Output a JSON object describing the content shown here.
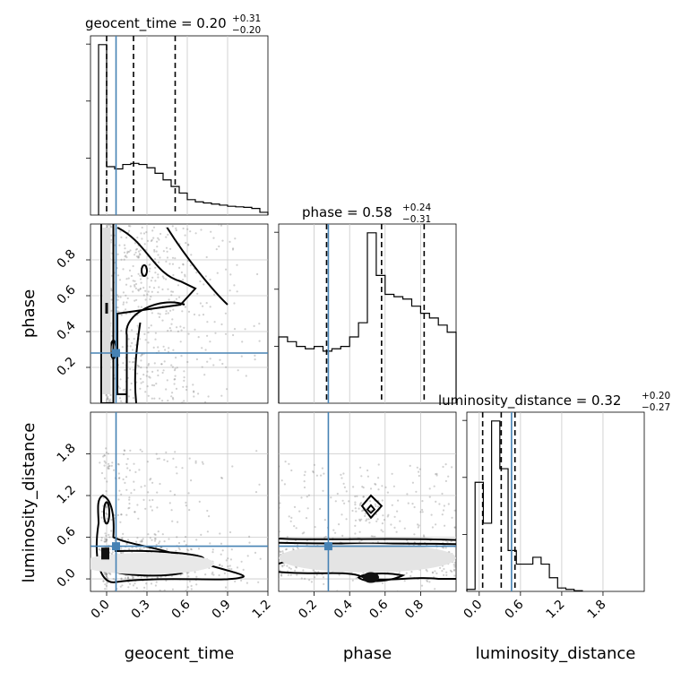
{
  "chart_data": {
    "type": "corner",
    "parameters": [
      "geocent_time",
      "phase",
      "luminosity_distance"
    ],
    "titles": {
      "geocent_time": {
        "text": "geocent_time = 0.20",
        "plus": "+0.31",
        "minus": "−0.20"
      },
      "phase": {
        "text": "phase = 0.58",
        "plus": "+0.24",
        "minus": "−0.31"
      },
      "luminosity_distance": {
        "text": "luminosity_distance = 0.32",
        "plus": "+0.20",
        "minus": "−0.27"
      }
    },
    "ranges": {
      "geocent_time": [
        -0.12,
        1.2
      ],
      "phase": [
        0.0,
        1.0
      ],
      "luminosity_distance": [
        -0.18,
        2.4
      ]
    },
    "ticks": {
      "geocent_time": {
        "values": [
          0.0,
          0.3,
          0.6,
          0.9,
          1.2
        ],
        "labels": [
          "0.0",
          "0.3",
          "0.6",
          "0.9",
          "1.2"
        ]
      },
      "phase": {
        "values": [
          0.2,
          0.4,
          0.6,
          0.8
        ],
        "labels": [
          "0.2",
          "0.4",
          "0.6",
          "0.8"
        ]
      },
      "luminosity_distance": {
        "values": [
          0.0,
          0.6,
          1.2,
          1.8
        ],
        "labels": [
          "0.0",
          "0.6",
          "1.2",
          "1.8"
        ]
      }
    },
    "truths": {
      "geocent_time": 0.07,
      "phase": 0.28,
      "luminosity_distance": 0.47
    },
    "quantiles": {
      "geocent_time": [
        0.0,
        0.2,
        0.51
      ],
      "phase": [
        0.27,
        0.58,
        0.82
      ],
      "luminosity_distance": [
        0.05,
        0.32,
        0.52
      ]
    },
    "histograms": {
      "geocent_time": {
        "bins": [
          -0.06,
          0.0,
          0.06,
          0.12,
          0.18,
          0.24,
          0.3,
          0.36,
          0.42,
          0.48,
          0.54,
          0.6,
          0.66,
          0.72,
          0.78,
          0.84,
          0.9,
          0.96,
          1.02,
          1.08,
          1.14,
          1.2
        ],
        "counts": [
          3.1,
          0.88,
          0.84,
          0.92,
          0.94,
          0.92,
          0.86,
          0.76,
          0.64,
          0.52,
          0.4,
          0.28,
          0.24,
          0.22,
          0.2,
          0.18,
          0.16,
          0.15,
          0.14,
          0.12,
          0.05
        ]
      },
      "phase": {
        "bins": [
          0.0,
          0.05,
          0.1,
          0.15,
          0.2,
          0.25,
          0.3,
          0.35,
          0.4,
          0.45,
          0.5,
          0.55,
          0.6,
          0.65,
          0.7,
          0.75,
          0.8,
          0.85,
          0.9,
          0.95,
          1.0
        ],
        "counts": [
          0.28,
          0.26,
          0.24,
          0.23,
          0.24,
          0.22,
          0.23,
          0.24,
          0.28,
          0.34,
          0.72,
          0.54,
          0.46,
          0.45,
          0.44,
          0.41,
          0.38,
          0.36,
          0.33,
          0.3
        ]
      },
      "luminosity_distance": {
        "bins": [
          -0.18,
          -0.06,
          0.06,
          0.18,
          0.3,
          0.42,
          0.54,
          0.66,
          0.78,
          0.9,
          1.02,
          1.14,
          1.26,
          1.38,
          1.5
        ],
        "counts": [
          0.03,
          1.6,
          1.0,
          2.5,
          1.8,
          0.6,
          0.4,
          0.4,
          0.5,
          0.4,
          0.2,
          0.05,
          0.03,
          0.01
        ]
      }
    },
    "grid": true
  }
}
